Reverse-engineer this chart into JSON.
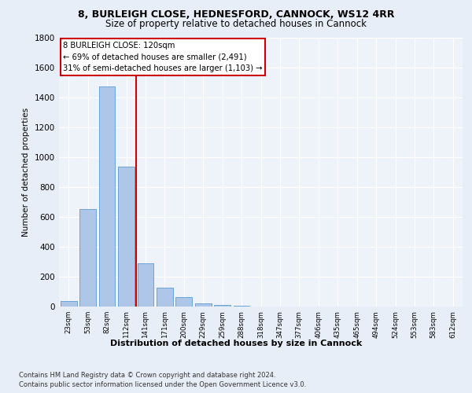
{
  "title1": "8, BURLEIGH CLOSE, HEDNESFORD, CANNOCK, WS12 4RR",
  "title2": "Size of property relative to detached houses in Cannock",
  "xlabel": "Distribution of detached houses by size in Cannock",
  "ylabel": "Number of detached properties",
  "categories": [
    "23sqm",
    "53sqm",
    "82sqm",
    "112sqm",
    "141sqm",
    "171sqm",
    "200sqm",
    "229sqm",
    "259sqm",
    "288sqm",
    "318sqm",
    "347sqm",
    "377sqm",
    "406sqm",
    "435sqm",
    "465sqm",
    "494sqm",
    "524sqm",
    "553sqm",
    "583sqm",
    "612sqm"
  ],
  "values": [
    38,
    650,
    1470,
    935,
    290,
    125,
    62,
    22,
    10,
    4,
    1,
    0,
    0,
    0,
    0,
    0,
    0,
    0,
    0,
    0,
    0
  ],
  "bar_color": "#aec6e8",
  "bar_edge_color": "#5b9bd5",
  "vline_x": 3.5,
  "vline_color": "#cc0000",
  "annotation_line1": "8 BURLEIGH CLOSE: 120sqm",
  "annotation_line2": "← 69% of detached houses are smaller (2,491)",
  "annotation_line3": "31% of semi-detached houses are larger (1,103) →",
  "annotation_box_color": "#cc0000",
  "ylim": [
    0,
    1800
  ],
  "yticks": [
    0,
    200,
    400,
    600,
    800,
    1000,
    1200,
    1400,
    1600,
    1800
  ],
  "footer1": "Contains HM Land Registry data © Crown copyright and database right 2024.",
  "footer2": "Contains public sector information licensed under the Open Government Licence v3.0.",
  "bg_color": "#e8eef7",
  "plot_bg_color": "#eef2f9"
}
